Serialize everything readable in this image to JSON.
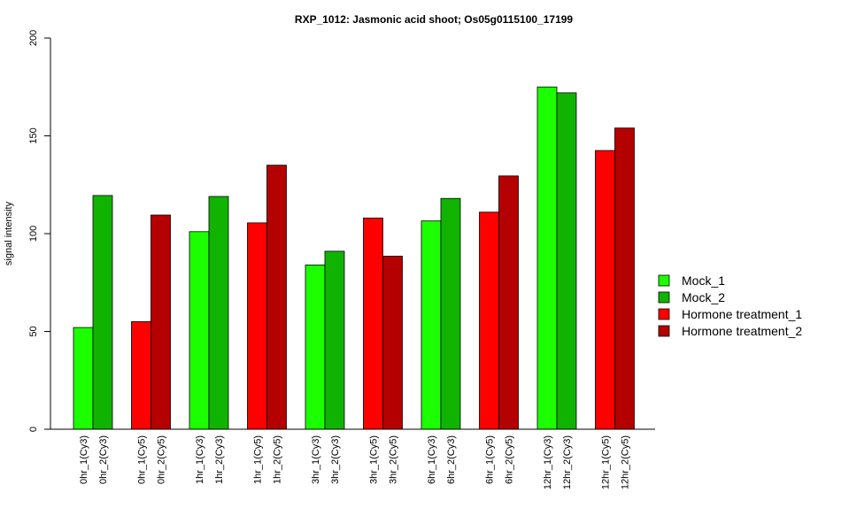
{
  "chart_data": {
    "type": "bar",
    "title": "RXP_1012: Jasmonic acid shoot; Os05g0115100_17199",
    "xlabel": "",
    "ylabel": "signal intensity",
    "ylim": [
      0,
      200
    ],
    "yticks": [
      0,
      50,
      100,
      150,
      200
    ],
    "grid": false,
    "legend_position": "right",
    "series": [
      {
        "name": "Mock_1",
        "color": "#1cff00"
      },
      {
        "name": "Mock_2",
        "color": "#10b400"
      },
      {
        "name": "Hormone treatment_1",
        "color": "#ff0000"
      },
      {
        "name": "Hormone treatment_2",
        "color": "#b40000"
      }
    ],
    "groups": [
      {
        "bars": [
          {
            "label": "0hr_1(Cy3)",
            "value": 52,
            "series": 0
          },
          {
            "label": "0hr_2(Cy3)",
            "value": 119.5,
            "series": 1
          }
        ]
      },
      {
        "bars": [
          {
            "label": "0hr_1(Cy5)",
            "value": 55,
            "series": 2
          },
          {
            "label": "0hr_2(Cy5)",
            "value": 109.5,
            "series": 3
          }
        ]
      },
      {
        "bars": [
          {
            "label": "1hr_1(Cy3)",
            "value": 101,
            "series": 0
          },
          {
            "label": "1hr_2(Cy3)",
            "value": 119,
            "series": 1
          }
        ]
      },
      {
        "bars": [
          {
            "label": "1hr_1(Cy5)",
            "value": 105.5,
            "series": 2
          },
          {
            "label": "1hr_2(Cy5)",
            "value": 135,
            "series": 3
          }
        ]
      },
      {
        "bars": [
          {
            "label": "3hr_1(Cy3)",
            "value": 84,
            "series": 0
          },
          {
            "label": "3hr_2(Cy3)",
            "value": 91,
            "series": 1
          }
        ]
      },
      {
        "bars": [
          {
            "label": "3hr_1(Cy5)",
            "value": 108,
            "series": 2
          },
          {
            "label": "3hr_2(Cy5)",
            "value": 88.5,
            "series": 3
          }
        ]
      },
      {
        "bars": [
          {
            "label": "6hr_1(Cy3)",
            "value": 106.5,
            "series": 0
          },
          {
            "label": "6hr_2(Cy3)",
            "value": 118,
            "series": 1
          }
        ]
      },
      {
        "bars": [
          {
            "label": "6hr_1(Cy5)",
            "value": 111,
            "series": 2
          },
          {
            "label": "6hr_2(Cy5)",
            "value": 129.5,
            "series": 3
          }
        ]
      },
      {
        "bars": [
          {
            "label": "12hr_1(Cy3)",
            "value": 175,
            "series": 0
          },
          {
            "label": "12hr_2(Cy3)",
            "value": 172,
            "series": 1
          }
        ]
      },
      {
        "bars": [
          {
            "label": "12hr_1(Cy5)",
            "value": 142.5,
            "series": 2
          },
          {
            "label": "12hr_2(Cy5)",
            "value": 154,
            "series": 3
          }
        ]
      }
    ]
  }
}
